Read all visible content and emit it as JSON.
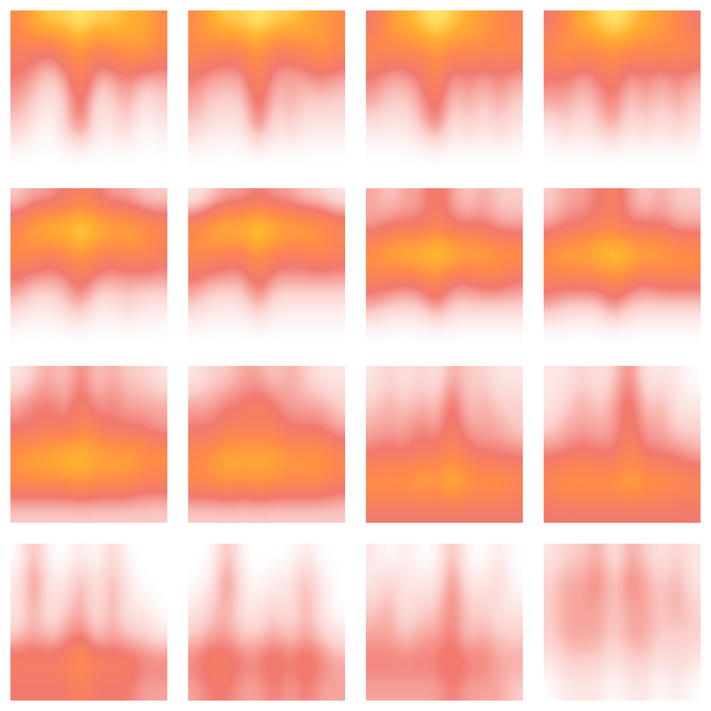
{
  "chart_data": [
    {
      "type": "heatmap",
      "tick_labels": false,
      "clim": [
        0,
        1
      ],
      "cells": [
        [
          0.6,
          0.8,
          0.9,
          0.9,
          1.0,
          0.9,
          0.9,
          0.8,
          0.8,
          0.6
        ],
        [
          0.5,
          0.5,
          0.4,
          0.6,
          0.7,
          0.5,
          0.6,
          0.7,
          0.7,
          0.6
        ],
        [
          0.4,
          0.3,
          0.2,
          0.3,
          0.6,
          0.3,
          0.3,
          0.4,
          0.3,
          0.3
        ],
        [
          0.3,
          0.2,
          0.1,
          0.2,
          0.5,
          0.1,
          0.2,
          0.3,
          0.1,
          0.2
        ],
        [
          0.2,
          0.1,
          0.0,
          0.2,
          0.4,
          0.1,
          0.1,
          0.2,
          0.0,
          0.1
        ],
        [
          0.0,
          0.0,
          0.0,
          0.0,
          0.0,
          0.0,
          0.0,
          0.0,
          0.0,
          0.0
        ]
      ]
    },
    {
      "type": "heatmap",
      "tick_labels": false,
      "clim": [
        0,
        1
      ],
      "cells": [
        [
          0.6,
          0.8,
          0.9,
          0.9,
          1.0,
          0.9,
          0.9,
          0.8,
          0.7,
          0.6
        ],
        [
          0.6,
          0.6,
          0.5,
          0.6,
          0.7,
          0.5,
          0.5,
          0.6,
          0.7,
          0.6
        ],
        [
          0.4,
          0.3,
          0.3,
          0.3,
          0.6,
          0.3,
          0.3,
          0.3,
          0.4,
          0.3
        ],
        [
          0.3,
          0.2,
          0.2,
          0.2,
          0.5,
          0.2,
          0.3,
          0.2,
          0.2,
          0.2
        ],
        [
          0.2,
          0.1,
          0.1,
          0.1,
          0.4,
          0.1,
          0.2,
          0.1,
          0.1,
          0.1
        ],
        [
          0.0,
          0.0,
          0.0,
          0.0,
          0.0,
          0.0,
          0.0,
          0.0,
          0.0,
          0.0
        ]
      ]
    },
    {
      "type": "heatmap",
      "tick_labels": false,
      "clim": [
        0,
        1
      ],
      "cells": [
        [
          0.4,
          0.7,
          0.8,
          0.9,
          1.0,
          0.9,
          0.8,
          0.7,
          0.6,
          0.5
        ],
        [
          0.6,
          0.6,
          0.6,
          0.6,
          0.7,
          0.6,
          0.6,
          0.6,
          0.6,
          0.6
        ],
        [
          0.4,
          0.3,
          0.3,
          0.4,
          0.6,
          0.3,
          0.4,
          0.3,
          0.4,
          0.3
        ],
        [
          0.3,
          0.2,
          0.2,
          0.3,
          0.5,
          0.2,
          0.3,
          0.2,
          0.3,
          0.2
        ],
        [
          0.1,
          0.1,
          0.1,
          0.2,
          0.4,
          0.1,
          0.2,
          0.1,
          0.2,
          0.1
        ],
        [
          0.0,
          0.0,
          0.0,
          0.0,
          0.0,
          0.0,
          0.0,
          0.0,
          0.0,
          0.0
        ]
      ]
    },
    {
      "type": "heatmap",
      "tick_labels": false,
      "clim": [
        0,
        1
      ],
      "cells": [
        [
          0.4,
          0.6,
          0.8,
          0.9,
          1.0,
          0.9,
          0.8,
          0.7,
          0.6,
          0.4
        ],
        [
          0.6,
          0.7,
          0.6,
          0.6,
          0.7,
          0.6,
          0.6,
          0.6,
          0.6,
          0.6
        ],
        [
          0.4,
          0.4,
          0.3,
          0.4,
          0.5,
          0.3,
          0.4,
          0.3,
          0.4,
          0.3
        ],
        [
          0.3,
          0.3,
          0.2,
          0.3,
          0.4,
          0.2,
          0.3,
          0.2,
          0.3,
          0.2
        ],
        [
          0.1,
          0.2,
          0.1,
          0.2,
          0.3,
          0.1,
          0.2,
          0.1,
          0.2,
          0.1
        ],
        [
          0.0,
          0.0,
          0.0,
          0.0,
          0.0,
          0.0,
          0.0,
          0.0,
          0.0,
          0.0
        ]
      ]
    },
    {
      "type": "heatmap",
      "tick_labels": false,
      "clim": [
        0,
        1
      ],
      "cells": [
        [
          0.2,
          0.3,
          0.3,
          0.4,
          0.5,
          0.4,
          0.3,
          0.3,
          0.2,
          0.2
        ],
        [
          0.6,
          0.8,
          0.9,
          0.9,
          1.0,
          0.9,
          0.8,
          0.8,
          0.7,
          0.6
        ],
        [
          0.6,
          0.6,
          0.5,
          0.6,
          0.7,
          0.6,
          0.5,
          0.6,
          0.6,
          0.5
        ],
        [
          0.4,
          0.3,
          0.3,
          0.3,
          0.5,
          0.3,
          0.3,
          0.3,
          0.3,
          0.3
        ],
        [
          0.2,
          0.1,
          0.1,
          0.2,
          0.3,
          0.1,
          0.1,
          0.2,
          0.1,
          0.1
        ],
        [
          0.0,
          0.0,
          0.0,
          0.0,
          0.0,
          0.0,
          0.0,
          0.0,
          0.0,
          0.0
        ]
      ]
    },
    {
      "type": "heatmap",
      "tick_labels": false,
      "clim": [
        0,
        1
      ],
      "cells": [
        [
          0.1,
          0.2,
          0.3,
          0.3,
          0.4,
          0.3,
          0.3,
          0.2,
          0.2,
          0.1
        ],
        [
          0.6,
          0.8,
          0.9,
          0.9,
          1.0,
          0.9,
          0.8,
          0.8,
          0.7,
          0.6
        ],
        [
          0.6,
          0.6,
          0.5,
          0.5,
          0.7,
          0.5,
          0.5,
          0.5,
          0.6,
          0.5
        ],
        [
          0.4,
          0.3,
          0.3,
          0.3,
          0.5,
          0.3,
          0.3,
          0.3,
          0.3,
          0.3
        ],
        [
          0.2,
          0.1,
          0.1,
          0.1,
          0.3,
          0.1,
          0.1,
          0.1,
          0.1,
          0.1
        ],
        [
          0.0,
          0.0,
          0.0,
          0.0,
          0.0,
          0.0,
          0.0,
          0.0,
          0.0,
          0.0
        ]
      ]
    },
    {
      "type": "heatmap",
      "tick_labels": false,
      "clim": [
        0,
        1
      ],
      "cells": [
        [
          0.3,
          0.2,
          0.3,
          0.3,
          0.5,
          0.3,
          0.2,
          0.3,
          0.2,
          0.2
        ],
        [
          0.3,
          0.4,
          0.4,
          0.4,
          0.5,
          0.4,
          0.4,
          0.4,
          0.3,
          0.3
        ],
        [
          0.7,
          0.8,
          0.9,
          0.9,
          1.0,
          0.9,
          0.8,
          0.8,
          0.7,
          0.7
        ],
        [
          0.5,
          0.5,
          0.4,
          0.5,
          0.6,
          0.4,
          0.4,
          0.5,
          0.5,
          0.4
        ],
        [
          0.3,
          0.2,
          0.2,
          0.2,
          0.4,
          0.2,
          0.2,
          0.2,
          0.2,
          0.2
        ],
        [
          0.0,
          0.0,
          0.0,
          0.0,
          0.0,
          0.0,
          0.0,
          0.0,
          0.0,
          0.0
        ]
      ]
    },
    {
      "type": "heatmap",
      "tick_labels": false,
      "clim": [
        0,
        1
      ],
      "cells": [
        [
          0.2,
          0.3,
          0.3,
          0.4,
          0.5,
          0.3,
          0.2,
          0.3,
          0.2,
          0.2
        ],
        [
          0.3,
          0.4,
          0.4,
          0.5,
          0.5,
          0.4,
          0.4,
          0.4,
          0.3,
          0.3
        ],
        [
          0.7,
          0.8,
          0.8,
          0.9,
          1.0,
          0.9,
          0.8,
          0.8,
          0.7,
          0.7
        ],
        [
          0.5,
          0.5,
          0.5,
          0.5,
          0.6,
          0.5,
          0.4,
          0.5,
          0.5,
          0.5
        ],
        [
          0.3,
          0.2,
          0.2,
          0.2,
          0.4,
          0.2,
          0.2,
          0.2,
          0.2,
          0.2
        ],
        [
          0.0,
          0.0,
          0.0,
          0.0,
          0.0,
          0.0,
          0.0,
          0.0,
          0.0,
          0.0
        ]
      ]
    },
    {
      "type": "heatmap",
      "tick_labels": false,
      "clim": [
        0,
        1
      ],
      "cells": [
        [
          0.1,
          0.2,
          0.3,
          0.2,
          0.4,
          0.2,
          0.3,
          0.2,
          0.2,
          0.1
        ],
        [
          0.3,
          0.4,
          0.4,
          0.3,
          0.5,
          0.3,
          0.4,
          0.3,
          0.3,
          0.3
        ],
        [
          0.4,
          0.4,
          0.5,
          0.4,
          0.6,
          0.5,
          0.4,
          0.4,
          0.4,
          0.3
        ],
        [
          0.7,
          0.8,
          0.8,
          0.9,
          0.9,
          0.8,
          0.8,
          0.8,
          0.7,
          0.7
        ],
        [
          0.6,
          0.6,
          0.6,
          0.6,
          0.7,
          0.6,
          0.6,
          0.6,
          0.5,
          0.5
        ],
        [
          0.2,
          0.2,
          0.2,
          0.2,
          0.2,
          0.2,
          0.2,
          0.2,
          0.2,
          0.2
        ]
      ]
    },
    {
      "type": "heatmap",
      "tick_labels": false,
      "clim": [
        0,
        1
      ],
      "cells": [
        [
          0.1,
          0.2,
          0.2,
          0.3,
          0.3,
          0.2,
          0.3,
          0.2,
          0.1,
          0.1
        ],
        [
          0.3,
          0.3,
          0.4,
          0.4,
          0.5,
          0.4,
          0.3,
          0.3,
          0.3,
          0.2
        ],
        [
          0.4,
          0.4,
          0.5,
          0.5,
          0.5,
          0.5,
          0.4,
          0.4,
          0.4,
          0.3
        ],
        [
          0.6,
          0.7,
          0.8,
          0.8,
          0.8,
          0.8,
          0.7,
          0.7,
          0.7,
          0.6
        ],
        [
          0.6,
          0.6,
          0.7,
          0.6,
          0.7,
          0.6,
          0.6,
          0.6,
          0.6,
          0.5
        ],
        [
          0.2,
          0.2,
          0.2,
          0.2,
          0.2,
          0.2,
          0.2,
          0.2,
          0.2,
          0.2
        ]
      ]
    },
    {
      "type": "heatmap",
      "tick_labels": false,
      "clim": [
        0,
        1
      ],
      "cells": [
        [
          0.1,
          0.2,
          0.1,
          0.2,
          0.1,
          0.3,
          0.2,
          0.2,
          0.1,
          0.1
        ],
        [
          0.2,
          0.3,
          0.2,
          0.3,
          0.2,
          0.5,
          0.2,
          0.3,
          0.2,
          0.2
        ],
        [
          0.3,
          0.3,
          0.3,
          0.4,
          0.3,
          0.5,
          0.3,
          0.3,
          0.3,
          0.2
        ],
        [
          0.4,
          0.5,
          0.4,
          0.5,
          0.5,
          0.6,
          0.5,
          0.4,
          0.4,
          0.4
        ],
        [
          0.7,
          0.7,
          0.7,
          0.8,
          0.7,
          0.9,
          0.7,
          0.7,
          0.7,
          0.6
        ],
        [
          0.4,
          0.4,
          0.4,
          0.4,
          0.4,
          0.4,
          0.4,
          0.4,
          0.4,
          0.4
        ]
      ]
    },
    {
      "type": "heatmap",
      "tick_labels": false,
      "clim": [
        0,
        1
      ],
      "cells": [
        [
          0.1,
          0.1,
          0.2,
          0.1,
          0.2,
          0.4,
          0.1,
          0.1,
          0.1,
          0.0
        ],
        [
          0.1,
          0.2,
          0.3,
          0.2,
          0.3,
          0.5,
          0.2,
          0.3,
          0.1,
          0.1
        ],
        [
          0.2,
          0.3,
          0.3,
          0.3,
          0.3,
          0.5,
          0.3,
          0.3,
          0.2,
          0.2
        ],
        [
          0.4,
          0.4,
          0.5,
          0.4,
          0.4,
          0.6,
          0.4,
          0.4,
          0.4,
          0.3
        ],
        [
          0.6,
          0.7,
          0.7,
          0.7,
          0.7,
          0.8,
          0.7,
          0.7,
          0.6,
          0.6
        ],
        [
          0.4,
          0.4,
          0.4,
          0.4,
          0.4,
          0.4,
          0.4,
          0.4,
          0.4,
          0.4
        ]
      ]
    },
    {
      "type": "heatmap",
      "tick_labels": false,
      "clim": [
        0,
        1
      ],
      "cells": [
        [
          0.0,
          0.3,
          0.0,
          0.0,
          0.1,
          0.0,
          0.2,
          0.0,
          0.0,
          0.0
        ],
        [
          0.1,
          0.4,
          0.1,
          0.1,
          0.3,
          0.1,
          0.3,
          0.1,
          0.0,
          0.0
        ],
        [
          0.1,
          0.3,
          0.1,
          0.2,
          0.3,
          0.1,
          0.3,
          0.1,
          0.1,
          0.0
        ],
        [
          0.2,
          0.3,
          0.2,
          0.3,
          0.4,
          0.2,
          0.3,
          0.2,
          0.2,
          0.1
        ],
        [
          0.5,
          0.5,
          0.5,
          0.5,
          0.7,
          0.5,
          0.5,
          0.5,
          0.4,
          0.4
        ],
        [
          0.4,
          0.4,
          0.4,
          0.4,
          0.5,
          0.4,
          0.4,
          0.4,
          0.3,
          0.3
        ]
      ]
    },
    {
      "type": "heatmap",
      "tick_labels": false,
      "clim": [
        0,
        1
      ],
      "cells": [
        [
          0.0,
          0.0,
          0.3,
          0.0,
          0.0,
          0.0,
          0.0,
          0.1,
          0.0,
          0.0
        ],
        [
          0.0,
          0.1,
          0.4,
          0.1,
          0.0,
          0.1,
          0.1,
          0.3,
          0.1,
          0.0
        ],
        [
          0.1,
          0.2,
          0.3,
          0.1,
          0.1,
          0.2,
          0.1,
          0.3,
          0.1,
          0.0
        ],
        [
          0.2,
          0.3,
          0.3,
          0.2,
          0.2,
          0.3,
          0.2,
          0.3,
          0.2,
          0.1
        ],
        [
          0.4,
          0.5,
          0.5,
          0.4,
          0.4,
          0.5,
          0.4,
          0.5,
          0.4,
          0.3
        ],
        [
          0.3,
          0.4,
          0.4,
          0.3,
          0.3,
          0.4,
          0.3,
          0.4,
          0.3,
          0.3
        ]
      ]
    },
    {
      "type": "heatmap",
      "tick_labels": false,
      "clim": [
        0,
        1
      ],
      "cells": [
        [
          0.1,
          0.0,
          0.1,
          0.0,
          0.0,
          0.3,
          0.0,
          0.0,
          0.1,
          0.0
        ],
        [
          0.1,
          0.2,
          0.1,
          0.1,
          0.1,
          0.4,
          0.1,
          0.1,
          0.2,
          0.0
        ],
        [
          0.2,
          0.3,
          0.1,
          0.2,
          0.2,
          0.4,
          0.2,
          0.2,
          0.1,
          0.1
        ],
        [
          0.3,
          0.3,
          0.2,
          0.3,
          0.3,
          0.4,
          0.2,
          0.3,
          0.2,
          0.2
        ],
        [
          0.4,
          0.4,
          0.4,
          0.4,
          0.4,
          0.5,
          0.4,
          0.4,
          0.3,
          0.3
        ],
        [
          0.3,
          0.3,
          0.3,
          0.3,
          0.3,
          0.4,
          0.3,
          0.3,
          0.3,
          0.2
        ]
      ]
    },
    {
      "type": "heatmap",
      "tick_labels": false,
      "clim": [
        0,
        1
      ],
      "cells": [
        [
          0.1,
          0.2,
          0.2,
          0.3,
          0.1,
          0.3,
          0.2,
          0.1,
          0.2,
          0.1
        ],
        [
          0.2,
          0.3,
          0.3,
          0.4,
          0.2,
          0.4,
          0.3,
          0.2,
          0.3,
          0.1
        ],
        [
          0.2,
          0.3,
          0.3,
          0.3,
          0.2,
          0.3,
          0.3,
          0.2,
          0.3,
          0.2
        ],
        [
          0.2,
          0.3,
          0.3,
          0.3,
          0.2,
          0.3,
          0.3,
          0.2,
          0.2,
          0.2
        ],
        [
          0.1,
          0.2,
          0.2,
          0.2,
          0.1,
          0.2,
          0.2,
          0.1,
          0.2,
          0.1
        ],
        [
          0.0,
          0.1,
          0.1,
          0.1,
          0.0,
          0.1,
          0.1,
          0.0,
          0.1,
          0.0
        ]
      ]
    }
  ]
}
